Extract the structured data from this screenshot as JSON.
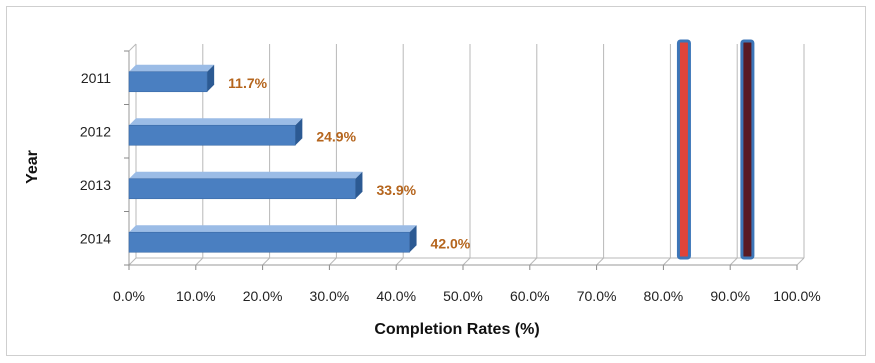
{
  "chart_data": {
    "type": "bar",
    "orientation": "horizontal",
    "style": "3d",
    "categories": [
      "2011",
      "2012",
      "2013",
      "2014"
    ],
    "values": [
      11.7,
      24.9,
      33.9,
      42.0
    ],
    "data_labels": [
      "11.7%",
      "24.9%",
      "33.9%",
      "42.0%"
    ],
    "xlabel": "Completion Rates (%)",
    "ylabel": "Year",
    "xlim": [
      0,
      100
    ],
    "x_ticks": [
      "0.0%",
      "10.0%",
      "20.0%",
      "30.0%",
      "40.0%",
      "50.0%",
      "60.0%",
      "70.0%",
      "80.0%",
      "90.0%",
      "100.0%"
    ],
    "grid": true,
    "legend": "none",
    "reference_lines": [
      {
        "value": 83,
        "color": "#e0443a"
      },
      {
        "value": 92.5,
        "color": "#5a1a24"
      }
    ],
    "colors": {
      "bar": "#4a7fc1",
      "bar_top": "#9bbce6",
      "bar_side": "#2c5a93",
      "label": "#b5651d",
      "grid": "#b8b8b8"
    }
  }
}
